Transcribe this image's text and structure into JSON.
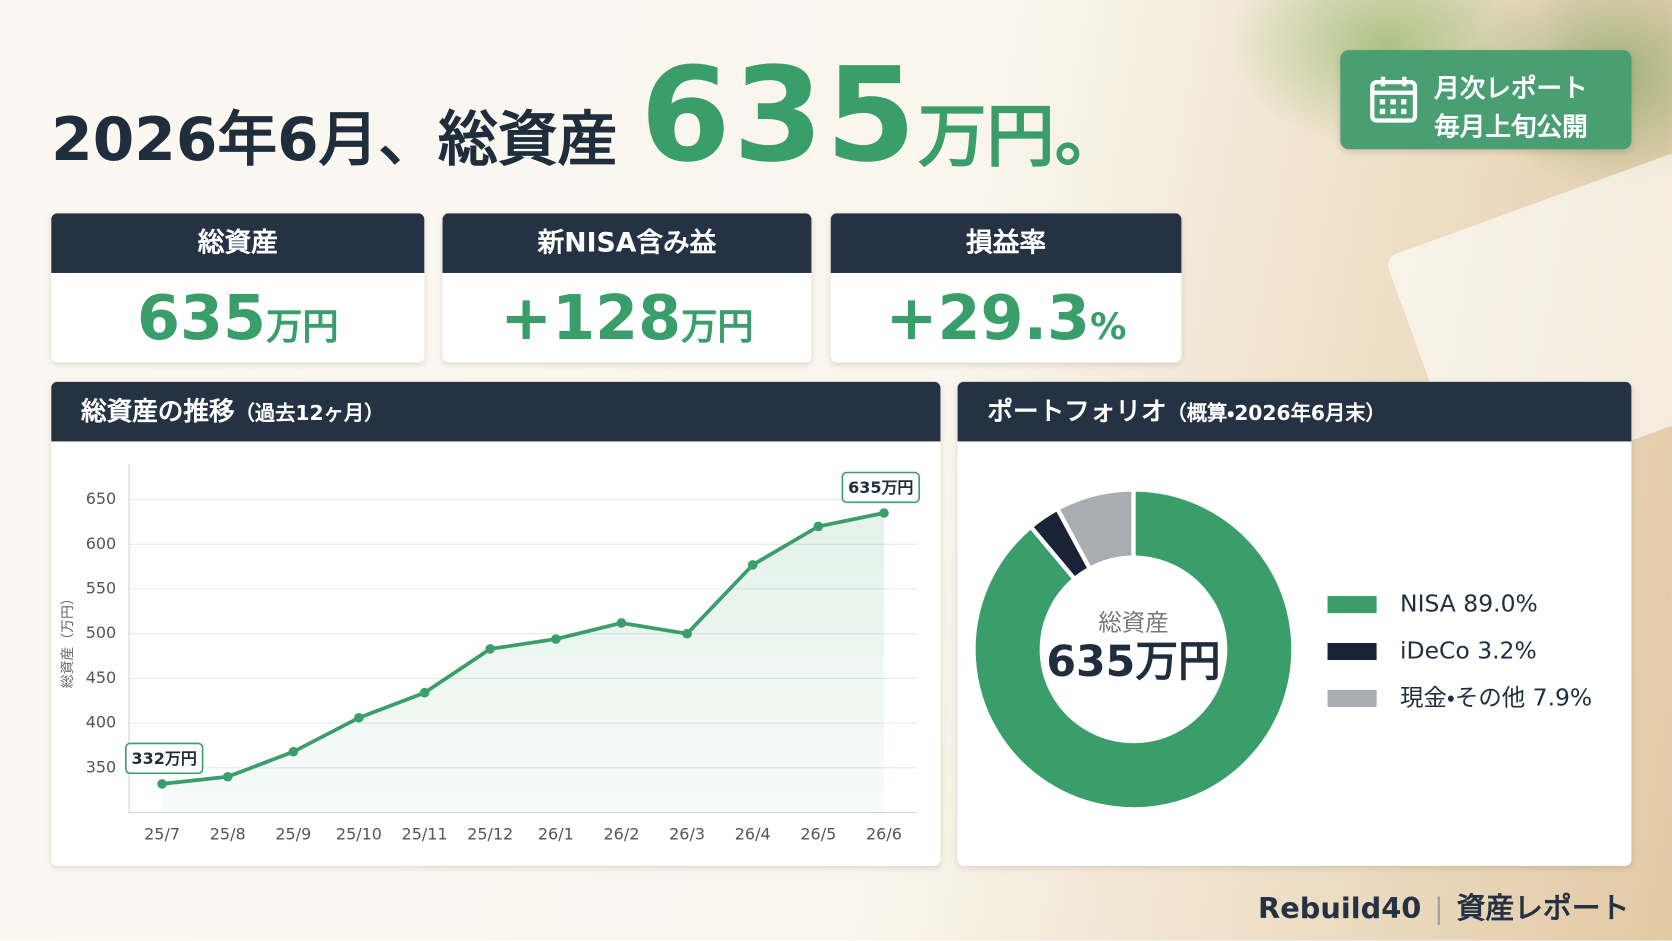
{
  "header": {
    "title_prefix": "2026年6月、総資産",
    "title_value": "635",
    "title_unit": "万円。",
    "badge": [
      "月次レポート",
      "毎月上旬公開"
    ]
  },
  "kpis": [
    {
      "label": "総資産",
      "value": "635",
      "unit": "万円"
    },
    {
      "label": "新NISA含み益",
      "value": "+128",
      "unit": "万円"
    },
    {
      "label": "損益率",
      "value": "+29.3",
      "unit": "%"
    }
  ],
  "chart_data": [
    {
      "type": "line",
      "title": "総資産の推移",
      "subtitle": "（過去12ヶ月）",
      "y_label": "総資産（万円）",
      "categories": [
        "25/7",
        "25/8",
        "25/9",
        "25/10",
        "25/11",
        "25/12",
        "26/1",
        "26/2",
        "26/3",
        "26/4",
        "26/5",
        "26/6"
      ],
      "values": [
        332,
        340,
        368,
        406,
        434,
        483,
        494,
        512,
        500,
        577,
        620,
        635
      ],
      "value_labels": [
        "332万円",
        null,
        null,
        null,
        null,
        null,
        null,
        null,
        null,
        null,
        null,
        "635万円"
      ],
      "color": "#3a9e6b",
      "ylim": [
        300,
        690
      ],
      "yticks": [
        350,
        400,
        450,
        500,
        550,
        600,
        650
      ],
      "grid": true
    },
    {
      "type": "donut",
      "title": "ポートフォリオ",
      "subtitle": "（概算・2026年6月末）",
      "categories": [
        "NISA",
        "iDeCo",
        "現金・その他"
      ],
      "values": [
        89.0,
        3.2,
        7.9
      ],
      "value_labels": [
        "89.0%",
        "3.2%",
        "7.9%"
      ],
      "colors": [
        "#3a9e6b",
        "#1a2238",
        "#a8adb2"
      ],
      "center_label": "総資産",
      "center_value": "635万円",
      "legend": "right"
    }
  ],
  "footer": {
    "brand": "Rebuild40",
    "label": "資産レポート"
  }
}
